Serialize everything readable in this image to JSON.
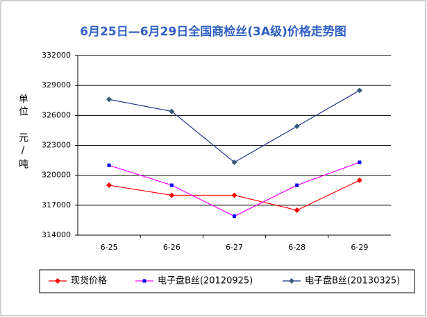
{
  "chart_data": {
    "type": "line",
    "title": "6月25日—6月29日全国商检丝(3A级)价格走势图",
    "y_label": "单位 元/吨",
    "categories": [
      "6-25",
      "6-26",
      "6-27",
      "6-28",
      "6-29"
    ],
    "series": [
      {
        "name": "现货价格",
        "color": "#ff0000",
        "marker": "diamond",
        "marker_color": "#ff0000",
        "values": [
          319000,
          318000,
          318000,
          316500,
          319500
        ]
      },
      {
        "name": "电子盘B丝(20120925)",
        "color": "#ff00ff",
        "marker": "square",
        "marker_color": "#0000ff",
        "values": [
          321000,
          319000,
          315900,
          319000,
          321300
        ]
      },
      {
        "name": "电子盘B丝(20130325)",
        "color": "#1a2f8a",
        "marker": "diamond",
        "marker_color": "#3a5a7a",
        "values": [
          327600,
          326400,
          321300,
          324900,
          328500
        ]
      }
    ],
    "ylim": [
      314000,
      332000
    ],
    "yticks": [
      314000,
      317000,
      320000,
      323000,
      326000,
      329000,
      332000
    ],
    "grid": true
  }
}
